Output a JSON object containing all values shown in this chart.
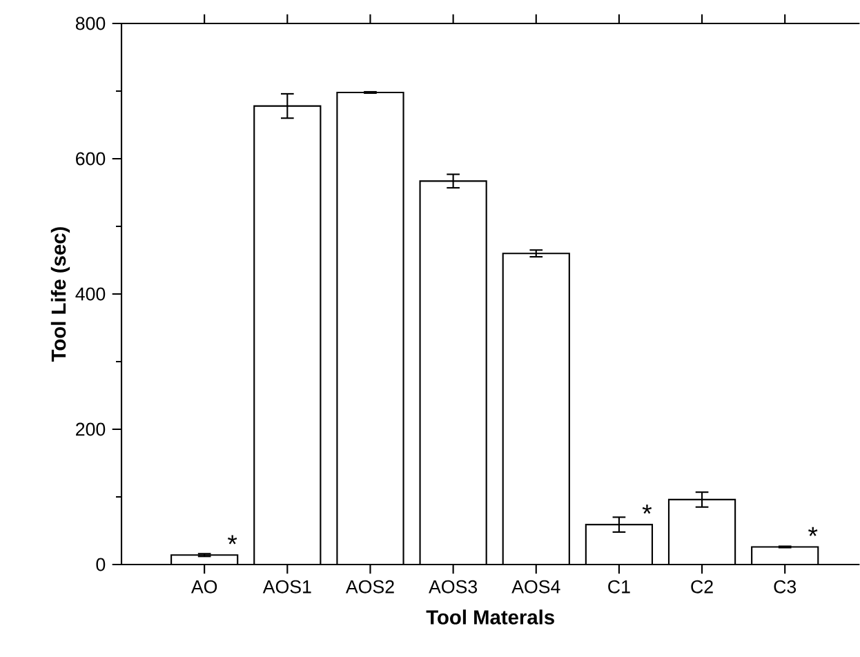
{
  "chart_data": {
    "type": "bar",
    "xlabel": "Tool Materals",
    "ylabel": "Tool Life (sec)",
    "categories": [
      "AO",
      "AOS1",
      "AOS2",
      "AOS3",
      "AOS4",
      "C1",
      "C2",
      "C3"
    ],
    "values": [
      14,
      678,
      698,
      567,
      460,
      59,
      96,
      26
    ],
    "errors": [
      2,
      18,
      1,
      10,
      5,
      11,
      11,
      1
    ],
    "color": "#ffffff",
    "ylim": [
      0,
      800
    ],
    "yticks": [
      0,
      200,
      400,
      600,
      800
    ],
    "annotations": [
      {
        "text": "*",
        "x": "AO",
        "y": 14
      },
      {
        "text": "*",
        "x": "C1",
        "y": 59
      },
      {
        "text": "*",
        "x": "C3",
        "y": 26
      }
    ]
  }
}
